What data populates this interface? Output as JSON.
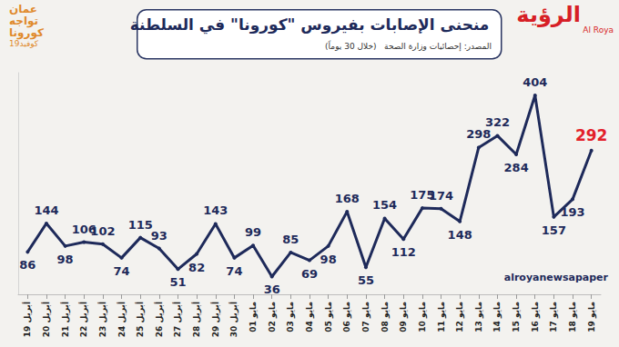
{
  "chart_data": {
    "type": "line",
    "title": "منحنى الإصابات بفيروس \"كورونا\" في السلطنة",
    "subtitle": [
      "المصدر: إحصائيات وزارة الصحة",
      "(خلال 30 يوماً)"
    ],
    "annotations": [
      "الرؤية",
      "Al Roya",
      "عمان",
      "تواجه",
      "كورونا",
      "كوفيد19",
      "alroyanewsapaper"
    ],
    "categories": [
      "19 أبريل",
      "20 أبريل",
      "21 أبريل",
      "22 أبريل",
      "23 أبريل",
      "24 أبريل",
      "25 أبريل",
      "26 أبريل",
      "27 أبريل",
      "28 أبريل",
      "29 أبريل",
      "30 أبريل",
      "01 مايو",
      "02 مايو",
      "03 مايو",
      "04 مايو",
      "05 مايو",
      "06 مايو",
      "07 مايو",
      "08 مايو",
      "09 مايو",
      "10 مايو",
      "11 مايو",
      "12 مايو",
      "13 مايو",
      "14 مايو",
      "15 مايو",
      "16 مايو",
      "17 مايو",
      "18 مايو",
      "19 مايو"
    ],
    "values": [
      86,
      144,
      98,
      106,
      102,
      74,
      115,
      93,
      51,
      82,
      143,
      74,
      99,
      36,
      85,
      69,
      98,
      168,
      55,
      154,
      112,
      175,
      174,
      148,
      298,
      322,
      284,
      404,
      157,
      193,
      292
    ],
    "color": "#1e2a5a",
    "marker": "circle",
    "ylim": [
      0,
      450
    ],
    "grid": false,
    "data_labels": true,
    "tick_labels": "x"
  }
}
